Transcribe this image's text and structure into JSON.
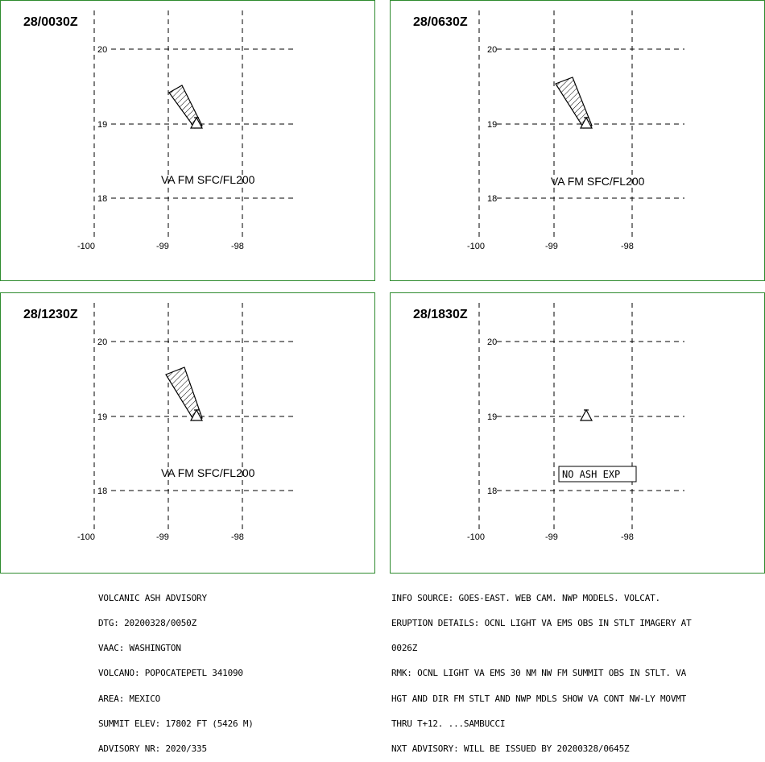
{
  "axes": {
    "lon_ticks": [
      "-100",
      "-99",
      "-98"
    ],
    "lat_ticks": [
      "20",
      "19",
      "18"
    ]
  },
  "panels": [
    {
      "time": "28/0030Z",
      "label": "VA FM SFC/FL200",
      "boxed": false
    },
    {
      "time": "28/0630Z",
      "label": "VA FM SFC/FL200",
      "boxed": false
    },
    {
      "time": "28/1230Z",
      "label": "VA FM SFC/FL200",
      "boxed": false
    },
    {
      "time": "28/1830Z",
      "label": "NO ASH EXP",
      "boxed": true
    }
  ],
  "advisory_left": [
    "VOLCANIC ASH ADVISORY",
    "DTG: 20200328/0050Z",
    "VAAC: WASHINGTON",
    "VOLCANO: POPOCATEPETL 341090",
    "AREA: MEXICO",
    "SUMMIT ELEV: 17802 FT (5426 M)",
    "ADVISORY NR: 2020/335"
  ],
  "advisory_right": [
    "INFO SOURCE: GOES-EAST. WEB CAM. NWP MODELS. VOLCAT.",
    "ERUPTION DETAILS: OCNL LIGHT VA EMS OBS IN STLT IMAGERY AT",
    "0026Z",
    "RMK: OCNL LIGHT VA EMS 30 NM NW FM SUMMIT OBS IN STLT. VA",
    "HGT AND DIR FM STLT AND NWP MDLS SHOW VA CONT NW-LY MOVMT",
    "THRU T+12. ...SAMBUCCI",
    "NXT ADVISORY: WILL BE ISSUED BY 20200328/0645Z"
  ]
}
